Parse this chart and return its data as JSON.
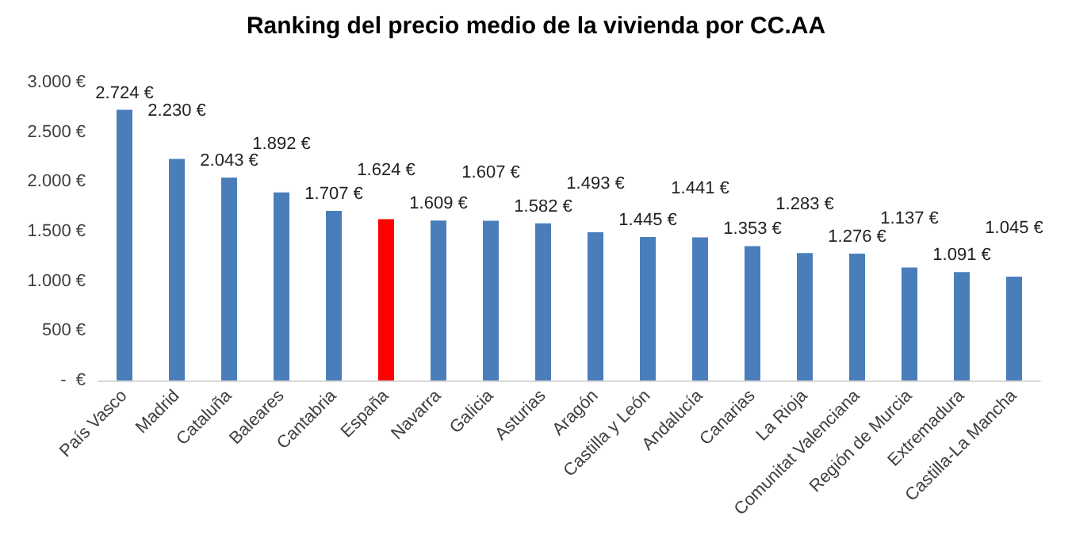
{
  "chart_data": {
    "type": "bar",
    "title": "Ranking del precio medio de la vivienda por CC.AA",
    "categories": [
      "País Vasco",
      "Madrid",
      "Cataluña",
      "Baleares",
      "Cantabria",
      "España",
      "Navarra",
      "Galicia",
      "Asturias",
      "Aragón",
      "Castilla y León",
      "Andalucía",
      "Canarias",
      "La Rioja",
      "Comunitat Valenciana",
      "Región de Murcia",
      "Extremadura",
      "Castilla-La Mancha"
    ],
    "values": [
      2724,
      2230,
      2043,
      1892,
      1707,
      1624,
      1609,
      1607,
      1582,
      1493,
      1445,
      1441,
      1353,
      1283,
      1276,
      1137,
      1091,
      1045
    ],
    "value_labels": [
      "2.724 €",
      "2.230 €",
      "2.043 €",
      "1.892 €",
      "1.707 €",
      "1.624 €",
      "1.609 €",
      "1.607 €",
      "1.582 €",
      "1.493 €",
      "1.445 €",
      "1.441 €",
      "1.353 €",
      "1.283 €",
      "1.276 €",
      "1.137 €",
      "1.091 €",
      "1.045 €"
    ],
    "colors": [
      "#4a7ebb",
      "#4a7ebb",
      "#4a7ebb",
      "#4a7ebb",
      "#4a7ebb",
      "#ff0000",
      "#4a7ebb",
      "#4a7ebb",
      "#4a7ebb",
      "#4a7ebb",
      "#4a7ebb",
      "#4a7ebb",
      "#4a7ebb",
      "#4a7ebb",
      "#4a7ebb",
      "#4a7ebb",
      "#4a7ebb",
      "#4a7ebb"
    ],
    "ylim": [
      0,
      3000
    ],
    "yticks": [
      {
        "value": 0,
        "label": "-  €"
      },
      {
        "value": 500,
        "label": "500 €"
      },
      {
        "value": 1000,
        "label": "1.000 €"
      },
      {
        "value": 1500,
        "label": "1.500 €"
      },
      {
        "value": 2000,
        "label": "2.000 €"
      },
      {
        "value": 2500,
        "label": "2.500 €"
      },
      {
        "value": 3000,
        "label": "3.000 €"
      }
    ],
    "grid": false
  }
}
